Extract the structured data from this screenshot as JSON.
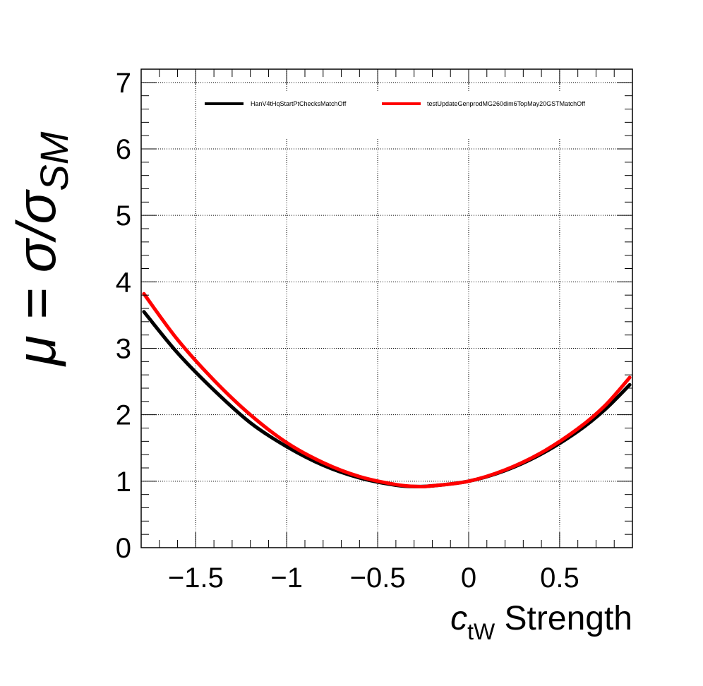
{
  "chart_data": {
    "type": "line",
    "title": "",
    "xlabel": {
      "prefix": "c",
      "subscript": "tW",
      "suffix": " Strength"
    },
    "ylabel": {
      "main": "μ = σ/σ",
      "subscript": "SM"
    },
    "xlim": [
      -1.8,
      0.9
    ],
    "ylim": [
      0,
      7.2
    ],
    "x_ticks": [
      {
        "value": -1.5,
        "label": "−1.5"
      },
      {
        "value": -1.0,
        "label": "−1"
      },
      {
        "value": -0.5,
        "label": "−0.5"
      },
      {
        "value": 0.0,
        "label": "0"
      },
      {
        "value": 0.5,
        "label": "0.5"
      }
    ],
    "y_ticks": [
      {
        "value": 0,
        "label": "0"
      },
      {
        "value": 1,
        "label": "1"
      },
      {
        "value": 2,
        "label": "2"
      },
      {
        "value": 3,
        "label": "3"
      },
      {
        "value": 4,
        "label": "4"
      },
      {
        "value": 5,
        "label": "5"
      },
      {
        "value": 6,
        "label": "6"
      },
      {
        "value": 7,
        "label": "7"
      }
    ],
    "grid": true,
    "legend_position": "top",
    "series": [
      {
        "name": "HanV4tHqStartPtChecksMatchOff",
        "color": "#000000",
        "x": [
          -1.785,
          -1.6,
          -1.4,
          -1.2,
          -1.0,
          -0.8,
          -0.6,
          -0.4,
          -0.28,
          -0.2,
          0.0,
          0.2,
          0.4,
          0.6,
          0.75,
          0.885
        ],
        "y": [
          3.55,
          2.93,
          2.37,
          1.88,
          1.52,
          1.24,
          1.05,
          0.94,
          0.92,
          0.93,
          1.0,
          1.16,
          1.41,
          1.75,
          2.08,
          2.45
        ]
      },
      {
        "name": "testUpdateGenprodMG260dim6TopMay20GSTMatchOff",
        "color": "#ff0000",
        "x": [
          -1.785,
          -1.6,
          -1.4,
          -1.2,
          -1.0,
          -0.8,
          -0.6,
          -0.4,
          -0.28,
          -0.2,
          0.0,
          0.2,
          0.4,
          0.6,
          0.75,
          0.885
        ],
        "y": [
          3.82,
          3.13,
          2.52,
          2.0,
          1.58,
          1.28,
          1.07,
          0.95,
          0.92,
          0.93,
          1.0,
          1.17,
          1.43,
          1.79,
          2.14,
          2.56
        ]
      }
    ]
  }
}
